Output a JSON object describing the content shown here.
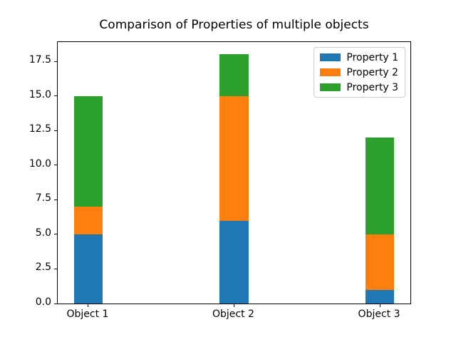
{
  "chart_data": {
    "type": "bar",
    "stacked": true,
    "title": "Comparison of Properties of multiple objects",
    "categories": [
      "Object 1",
      "Object 2",
      "Object 3"
    ],
    "series": [
      {
        "name": "Property 1",
        "color": "#1f77b4",
        "values": [
          5,
          6,
          1
        ]
      },
      {
        "name": "Property 2",
        "color": "#ff7f0e",
        "values": [
          2,
          9,
          4
        ]
      },
      {
        "name": "Property 3",
        "color": "#2ca02c",
        "values": [
          8,
          3,
          7
        ]
      }
    ],
    "xlabel": "",
    "ylabel": "",
    "ylim": [
      0,
      18.9
    ],
    "yticks": [
      "0.0",
      "2.5",
      "5.0",
      "7.5",
      "10.0",
      "12.5",
      "15.0",
      "17.5"
    ],
    "totals": [
      15,
      18,
      12
    ],
    "grid": false,
    "legend": {
      "position": "upper right",
      "entries": [
        "Property 1",
        "Property 2",
        "Property 3"
      ]
    }
  },
  "colors": {
    "spine": "#000000",
    "legend_border": "#cccccc",
    "background": "#ffffff"
  }
}
